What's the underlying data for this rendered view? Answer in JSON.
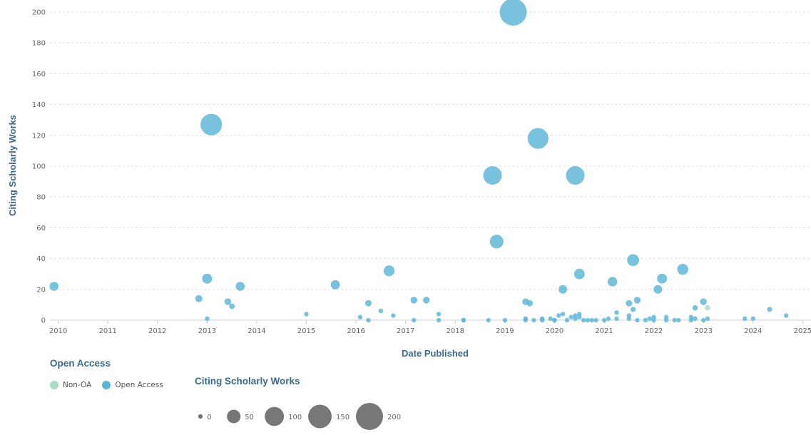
{
  "chart_data": {
    "type": "scatter",
    "xlabel": "Date Published",
    "ylabel": "Citing Scholarly Works",
    "xlim": [
      "2009-11",
      "2025-03"
    ],
    "ylim": [
      0,
      200
    ],
    "x_ticks": [
      "2010",
      "2011",
      "2012",
      "2013",
      "2014",
      "2015",
      "2016",
      "2017",
      "2018",
      "2019",
      "2020",
      "2021",
      "2022",
      "2023",
      "2024",
      "2025"
    ],
    "y_ticks": [
      0,
      20,
      40,
      60,
      80,
      100,
      120,
      140,
      160,
      180,
      200
    ],
    "grid": "horizontal dashed",
    "colors": {
      "Non-OA": "#a8dcc4",
      "Open Access": "#5ab4d6"
    },
    "series": [
      {
        "name": "Open Access",
        "points": [
          {
            "x": "2009-12",
            "y": 22
          },
          {
            "x": "2012-11",
            "y": 14
          },
          {
            "x": "2013-01",
            "y": 27
          },
          {
            "x": "2013-01",
            "y": 1
          },
          {
            "x": "2013-02",
            "y": 127
          },
          {
            "x": "2013-06",
            "y": 12
          },
          {
            "x": "2013-07",
            "y": 9
          },
          {
            "x": "2013-09",
            "y": 22
          },
          {
            "x": "2015-01",
            "y": 4
          },
          {
            "x": "2015-08",
            "y": 23
          },
          {
            "x": "2016-02",
            "y": 2
          },
          {
            "x": "2016-04",
            "y": 11
          },
          {
            "x": "2016-04",
            "y": 0
          },
          {
            "x": "2016-07",
            "y": 6
          },
          {
            "x": "2016-09",
            "y": 32
          },
          {
            "x": "2016-10",
            "y": 3
          },
          {
            "x": "2017-03",
            "y": 13
          },
          {
            "x": "2017-03",
            "y": 0
          },
          {
            "x": "2017-06",
            "y": 13
          },
          {
            "x": "2017-09",
            "y": 4
          },
          {
            "x": "2017-09",
            "y": 0
          },
          {
            "x": "2018-03",
            "y": 0
          },
          {
            "x": "2018-03",
            "y": 0
          },
          {
            "x": "2018-09",
            "y": 0
          },
          {
            "x": "2018-10",
            "y": 94
          },
          {
            "x": "2018-11",
            "y": 51
          },
          {
            "x": "2019-01",
            "y": 0
          },
          {
            "x": "2019-03",
            "y": 200
          },
          {
            "x": "2019-06",
            "y": 12
          },
          {
            "x": "2019-06",
            "y": 1
          },
          {
            "x": "2019-06",
            "y": 0
          },
          {
            "x": "2019-07",
            "y": 11
          },
          {
            "x": "2019-08",
            "y": 0
          },
          {
            "x": "2019-09",
            "y": 118
          },
          {
            "x": "2019-10",
            "y": 1
          },
          {
            "x": "2019-10",
            "y": 0
          },
          {
            "x": "2019-12",
            "y": 1
          },
          {
            "x": "2020-01",
            "y": 0
          },
          {
            "x": "2020-01",
            "y": 0
          },
          {
            "x": "2020-02",
            "y": 3
          },
          {
            "x": "2020-03",
            "y": 4
          },
          {
            "x": "2020-03",
            "y": 20
          },
          {
            "x": "2020-04",
            "y": 0
          },
          {
            "x": "2020-05",
            "y": 2
          },
          {
            "x": "2020-06",
            "y": 94
          },
          {
            "x": "2020-06",
            "y": 3
          },
          {
            "x": "2020-06",
            "y": 1
          },
          {
            "x": "2020-07",
            "y": 30
          },
          {
            "x": "2020-07",
            "y": 4
          },
          {
            "x": "2020-07",
            "y": 2
          },
          {
            "x": "2020-08",
            "y": 0
          },
          {
            "x": "2020-09",
            "y": 0
          },
          {
            "x": "2020-10",
            "y": 0
          },
          {
            "x": "2020-11",
            "y": 0
          },
          {
            "x": "2021-01",
            "y": 0
          },
          {
            "x": "2021-02",
            "y": 1
          },
          {
            "x": "2021-03",
            "y": 25
          },
          {
            "x": "2021-04",
            "y": 5
          },
          {
            "x": "2021-04",
            "y": 1
          },
          {
            "x": "2021-07",
            "y": 11
          },
          {
            "x": "2021-07",
            "y": 3
          },
          {
            "x": "2021-07",
            "y": 1
          },
          {
            "x": "2021-08",
            "y": 39
          },
          {
            "x": "2021-08",
            "y": 7
          },
          {
            "x": "2021-09",
            "y": 13
          },
          {
            "x": "2021-09",
            "y": 0
          },
          {
            "x": "2021-11",
            "y": 0
          },
          {
            "x": "2021-12",
            "y": 1
          },
          {
            "x": "2022-01",
            "y": 2
          },
          {
            "x": "2022-01",
            "y": 0
          },
          {
            "x": "2022-02",
            "y": 20
          },
          {
            "x": "2022-03",
            "y": 27
          },
          {
            "x": "2022-04",
            "y": 0
          },
          {
            "x": "2022-04",
            "y": 2
          },
          {
            "x": "2022-06",
            "y": 0
          },
          {
            "x": "2022-07",
            "y": 0
          },
          {
            "x": "2022-08",
            "y": 33
          },
          {
            "x": "2022-10",
            "y": 2
          },
          {
            "x": "2022-10",
            "y": 0
          },
          {
            "x": "2022-11",
            "y": 8
          },
          {
            "x": "2022-11",
            "y": 1
          },
          {
            "x": "2023-01",
            "y": 12
          },
          {
            "x": "2023-01",
            "y": 0
          },
          {
            "x": "2023-02",
            "y": 1
          },
          {
            "x": "2023-11",
            "y": 1
          },
          {
            "x": "2024-01",
            "y": 1
          },
          {
            "x": "2024-05",
            "y": 7
          },
          {
            "x": "2024-09",
            "y": 3
          }
        ]
      },
      {
        "name": "Non-OA",
        "points": [
          {
            "x": "2023-02",
            "y": 8
          }
        ]
      }
    ],
    "size_legend_values": [
      0,
      50,
      100,
      150,
      200
    ]
  },
  "legends": {
    "color_title": "Open Access",
    "color_items": [
      {
        "label": "Non-OA",
        "color": "#a8dcc4"
      },
      {
        "label": "Open Access",
        "color": "#5ab4d6"
      }
    ],
    "size_title": "Citing Scholarly Works",
    "size_items": [
      "0",
      "50",
      "100",
      "150",
      "200"
    ]
  }
}
